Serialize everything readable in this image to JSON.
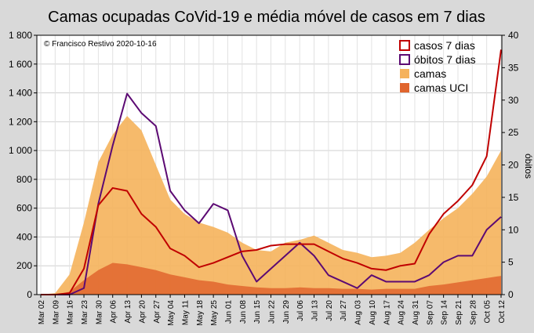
{
  "chart_data": {
    "type": "area",
    "title": "Camas ocupadas CoVid-19 e média móvel de casos em 7 dias",
    "copyright": "© Francisco Restivo 2020-10-16",
    "ylabel_right": "óbitos",
    "ylim_left": [
      0,
      1800
    ],
    "ylim_right": [
      0,
      40
    ],
    "yticks_left": [
      "0",
      "200",
      "400",
      "600",
      "800",
      "1 000",
      "1 200",
      "1 400",
      "1 600",
      "1 800"
    ],
    "yticks_right": [
      "0",
      "5",
      "10",
      "15",
      "20",
      "25",
      "30",
      "35",
      "40"
    ],
    "x_categories": [
      "Mar 02",
      "Mar 09",
      "Mar 16",
      "Mar 23",
      "Mar 30",
      "Apr 06",
      "Apr 13",
      "Apr 20",
      "Apr 27",
      "May 04",
      "May 11",
      "May 18",
      "May 25",
      "Jun 01",
      "Jun 08",
      "Jun 15",
      "Jun 22",
      "Jun 29",
      "Jul 06",
      "Jul 13",
      "Jul 20",
      "Jul 27",
      "Aug 03",
      "Aug 10",
      "Aug 17",
      "Aug 24",
      "Aug 31",
      "Sep 07",
      "Sep 14",
      "Sep 21",
      "Sep 28",
      "Oct 05",
      "Oct 12"
    ],
    "grid": true,
    "legend_position": "top-right",
    "colors": {
      "casos": "#c00000",
      "obitos": "#5c0a73",
      "camas": "#f5b25b",
      "camas_uci": "#e0652e",
      "grid": "#ffffff",
      "plot_bg": "#ffffff"
    },
    "series": [
      {
        "name": "casos 7 dias",
        "axis": "left",
        "style": "line",
        "values": [
          0,
          0,
          10,
          180,
          620,
          740,
          720,
          560,
          470,
          320,
          270,
          190,
          220,
          260,
          300,
          310,
          340,
          350,
          350,
          350,
          300,
          250,
          220,
          180,
          170,
          200,
          215,
          420,
          560,
          650,
          760,
          960,
          1700
        ]
      },
      {
        "name": "óbitos 7 dias",
        "axis": "right",
        "style": "line",
        "values": [
          0,
          0,
          0,
          1,
          14,
          23,
          31,
          28,
          26,
          16,
          13,
          11,
          14,
          13,
          6,
          2,
          4,
          6,
          8,
          6,
          3,
          2,
          1,
          3,
          2,
          2,
          2,
          3,
          5,
          6,
          6,
          10,
          12
        ]
      },
      {
        "name": "camas",
        "axis": "left",
        "style": "area",
        "values": [
          0,
          10,
          140,
          500,
          920,
          1110,
          1240,
          1140,
          900,
          660,
          560,
          500,
          470,
          430,
          360,
          310,
          300,
          360,
          380,
          410,
          360,
          310,
          290,
          260,
          270,
          290,
          360,
          450,
          530,
          600,
          700,
          820,
          1000
        ]
      },
      {
        "name": "camas UCI",
        "axis": "left",
        "style": "area",
        "values": [
          0,
          0,
          20,
          100,
          170,
          220,
          210,
          190,
          170,
          140,
          120,
          100,
          90,
          70,
          60,
          50,
          45,
          45,
          50,
          45,
          45,
          40,
          40,
          35,
          40,
          40,
          40,
          60,
          70,
          85,
          100,
          115,
          130
        ]
      }
    ]
  }
}
